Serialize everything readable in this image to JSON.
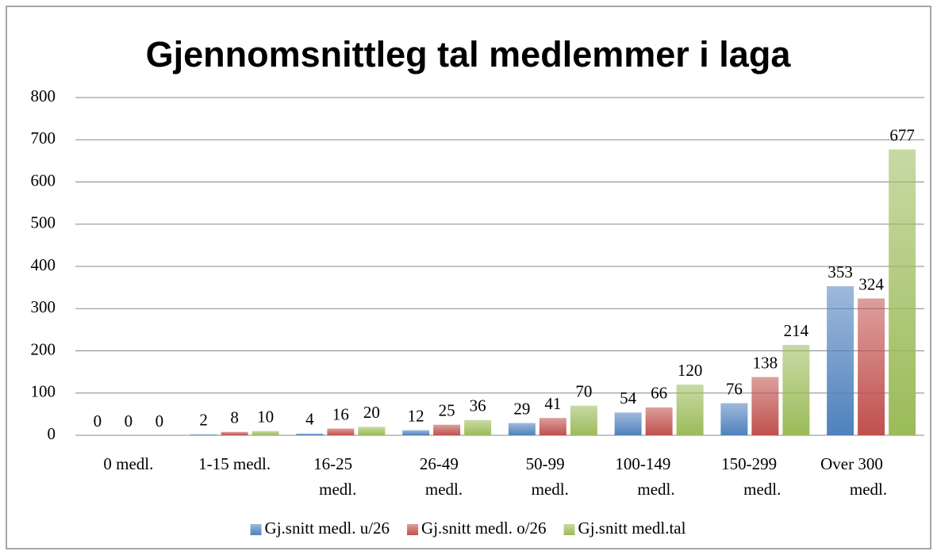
{
  "chart_data": {
    "type": "bar",
    "title": "Gjennomsnittleg tal medlemmer i laga",
    "categories": [
      "0 medl.",
      "1-15 medl.",
      "16-25 medl.",
      "26-49 medl.",
      "50-99 medl.",
      "100-149 medl.",
      "150-299 medl.",
      "Over 300 medl."
    ],
    "series": [
      {
        "name": "Gj.snitt medl. u/26",
        "color": "#4f81bd",
        "values": [
          0,
          2,
          4,
          12,
          29,
          54,
          76,
          353
        ]
      },
      {
        "name": "Gj.snitt medl. o/26",
        "color": "#c0504d",
        "values": [
          0,
          8,
          16,
          25,
          41,
          66,
          138,
          324
        ]
      },
      {
        "name": "Gj.snitt medl.tal",
        "color": "#9bbb59",
        "values": [
          0,
          10,
          20,
          36,
          70,
          120,
          214,
          677
        ]
      }
    ],
    "ylim": [
      0,
      800
    ],
    "yticks": [
      0,
      100,
      200,
      300,
      400,
      500,
      600,
      700,
      800
    ],
    "grid": true,
    "legend": "bottom"
  }
}
